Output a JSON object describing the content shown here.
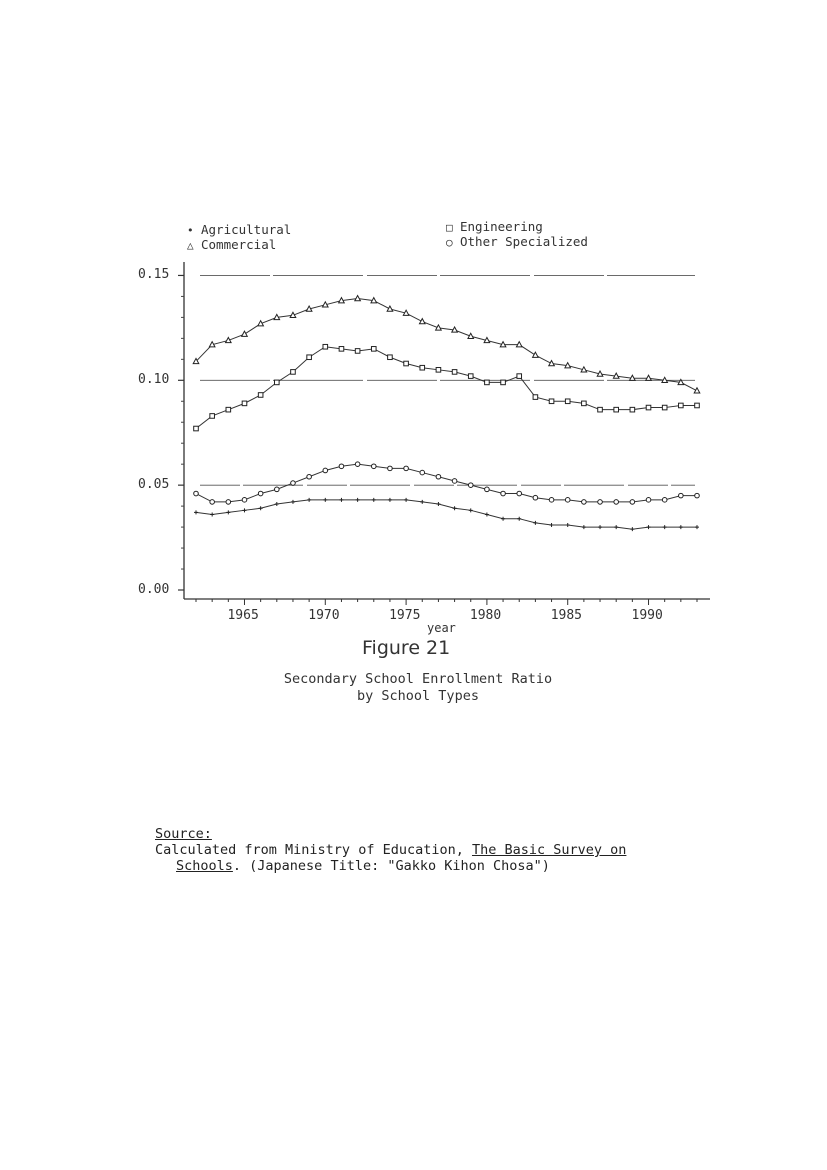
{
  "chart_data": {
    "type": "line",
    "xlabel": "year",
    "ylim": [
      0.0,
      0.155
    ],
    "xlim": [
      1961.5,
      1993.5
    ],
    "y_ticks": [
      "0.00",
      "0.05",
      "0.10",
      "0.15"
    ],
    "x_ticks": [
      "1965",
      "1970",
      "1975",
      "1980",
      "1985",
      "1990"
    ],
    "reference_lines": [
      0.05,
      0.1,
      0.15
    ],
    "legend": {
      "placement": "top"
    },
    "x": [
      1962,
      1963,
      1964,
      1965,
      1966,
      1967,
      1968,
      1969,
      1970,
      1971,
      1972,
      1973,
      1974,
      1975,
      1976,
      1977,
      1978,
      1979,
      1980,
      1981,
      1982,
      1983,
      1984,
      1985,
      1986,
      1987,
      1988,
      1989,
      1990,
      1991,
      1992,
      1993
    ],
    "series": [
      {
        "name": "Agricultural",
        "marker": "+",
        "values": [
          0.037,
          0.036,
          0.037,
          0.038,
          0.039,
          0.041,
          0.042,
          0.043,
          0.043,
          0.043,
          0.043,
          0.043,
          0.043,
          0.043,
          0.042,
          0.041,
          0.039,
          0.038,
          0.036,
          0.034,
          0.034,
          0.032,
          0.031,
          0.031,
          0.03,
          0.03,
          0.03,
          0.029,
          0.03,
          0.03,
          0.03,
          0.03
        ]
      },
      {
        "name": "Commercial",
        "marker": "triangle",
        "values": [
          0.109,
          0.117,
          0.119,
          0.122,
          0.127,
          0.13,
          0.131,
          0.134,
          0.136,
          0.138,
          0.139,
          0.138,
          0.134,
          0.132,
          0.128,
          0.125,
          0.124,
          0.121,
          0.119,
          0.117,
          0.117,
          0.112,
          0.108,
          0.107,
          0.105,
          0.103,
          0.102,
          0.101,
          0.101,
          0.1,
          0.099,
          0.095
        ]
      },
      {
        "name": "Engineering",
        "marker": "square",
        "values": [
          0.077,
          0.083,
          0.086,
          0.089,
          0.093,
          0.099,
          0.104,
          0.111,
          0.116,
          0.115,
          0.114,
          0.115,
          0.111,
          0.108,
          0.106,
          0.105,
          0.104,
          0.102,
          0.099,
          0.099,
          0.102,
          0.092,
          0.09,
          0.09,
          0.089,
          0.086,
          0.086,
          0.086,
          0.087,
          0.087,
          0.088,
          0.088
        ]
      },
      {
        "name": "Other Specialized",
        "marker": "circle",
        "values": [
          0.046,
          0.042,
          0.042,
          0.043,
          0.046,
          0.048,
          0.051,
          0.054,
          0.057,
          0.059,
          0.06,
          0.059,
          0.058,
          0.058,
          0.056,
          0.054,
          0.052,
          0.05,
          0.048,
          0.046,
          0.046,
          0.044,
          0.043,
          0.043,
          0.042,
          0.042,
          0.042,
          0.042,
          0.043,
          0.043,
          0.045,
          0.045
        ]
      }
    ],
    "figure_number": "Figure 21",
    "caption_line1": "Secondary School Enrollment Ratio",
    "caption_line2": "by School Types"
  },
  "source": {
    "heading": "Source:",
    "line1_prefix": "Calculated from Ministry of Education, ",
    "line1_title": "The Basic Survey on",
    "line2_title": "Schools",
    "line2_suffix": ".  (Japanese Title:  \"Gakko Kihon Chosa\")"
  }
}
